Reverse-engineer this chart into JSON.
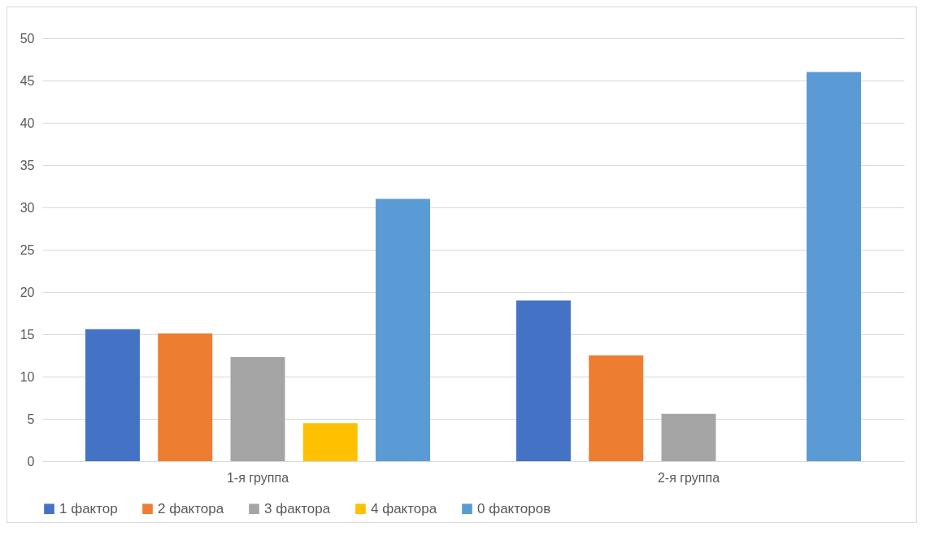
{
  "chart_data": {
    "type": "bar",
    "categories": [
      "1-я группа",
      "2-я группа"
    ],
    "series": [
      {
        "name": "1 фактор",
        "color": "#4472c4",
        "values": [
          15.6,
          19.0
        ]
      },
      {
        "name": "2 фактора",
        "color": "#ed7d31",
        "values": [
          15.1,
          12.5
        ]
      },
      {
        "name": "3 фактора",
        "color": "#a5a5a5",
        "values": [
          12.3,
          5.6
        ]
      },
      {
        "name": "4 фактора",
        "color": "#ffc000",
        "values": [
          4.5,
          null
        ]
      },
      {
        "name": "0 факторов",
        "color": "#5b9bd5",
        "values": [
          31.0,
          46.0
        ]
      }
    ],
    "ylim": [
      0,
      50
    ],
    "yticks": [
      0,
      5,
      10,
      15,
      20,
      25,
      30,
      35,
      40,
      45,
      50
    ],
    "grid": "y",
    "legend": "bottom"
  }
}
